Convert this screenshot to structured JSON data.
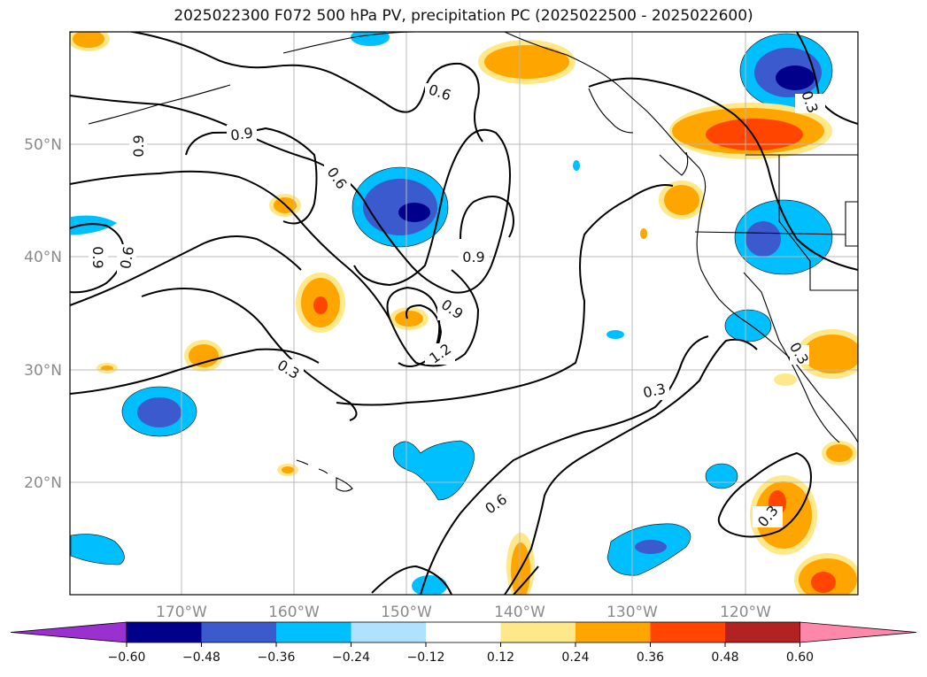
{
  "title": "2025022300 F072 500 hPa PV, precipitation PC (2025022500 - 2025022600)",
  "map": {
    "lat_labels": [
      "50°N",
      "40°N",
      "30°N",
      "20°N"
    ],
    "lon_labels": [
      "170°W",
      "160°W",
      "150°W",
      "140°W",
      "130°W",
      "120°W"
    ],
    "contour_labels": [
      "0.6",
      "0.9",
      "0.9",
      "0.6",
      "0.9",
      "0.6",
      "0.9",
      "0.3",
      "0.9",
      "1.2",
      "0.3",
      "0.6",
      "0.3",
      "0.3",
      "0.3"
    ]
  },
  "colorbar": {
    "ticks": [
      "−0.60",
      "−0.48",
      "−0.36",
      "−0.24",
      "−0.12",
      "0.12",
      "0.24",
      "0.36",
      "0.48",
      "0.60"
    ],
    "colors": [
      "#9b30d0",
      "#00008b",
      "#3a5acd",
      "#00bfff",
      "#b0e2ff",
      "#ffffff",
      "#ffe88a",
      "#ffa500",
      "#ff4500",
      "#b22222",
      "#ff88aa"
    ]
  }
}
